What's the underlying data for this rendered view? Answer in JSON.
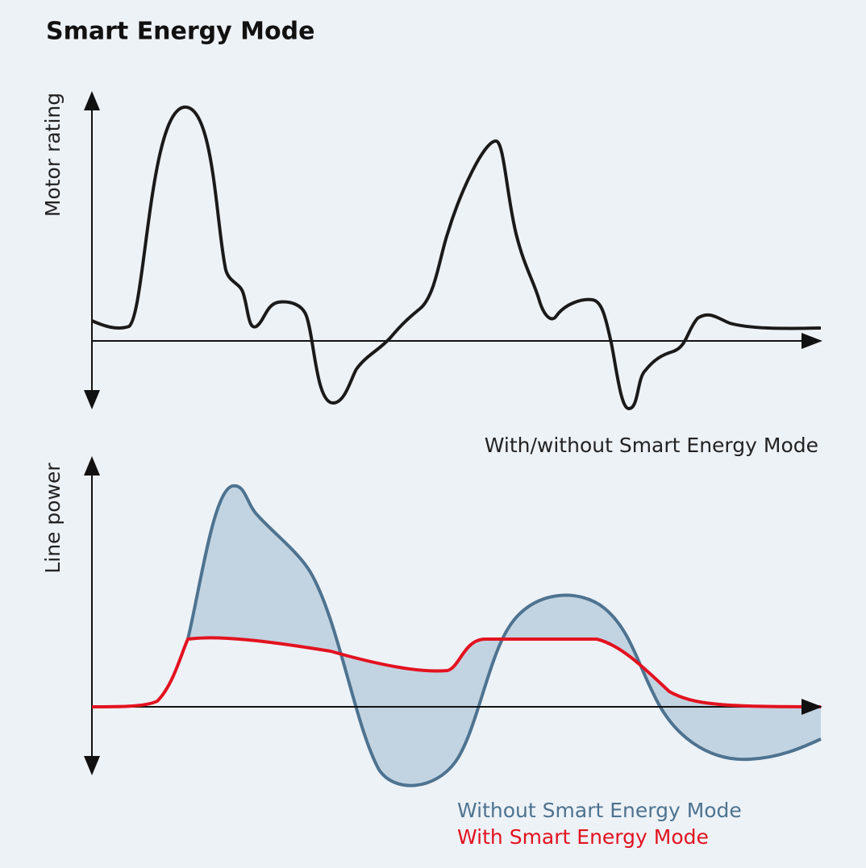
{
  "title": "Smart Energy Mode",
  "top_chart": {
    "y_label": "Motor rating",
    "caption": "With/without Smart Energy Mode"
  },
  "bottom_chart": {
    "y_label": "Line power",
    "legend": [
      {
        "name": "Without Smart Energy Mode",
        "color": "#4e7390"
      },
      {
        "name": "With Smart Energy Mode",
        "color": "#e3121f"
      }
    ]
  }
}
